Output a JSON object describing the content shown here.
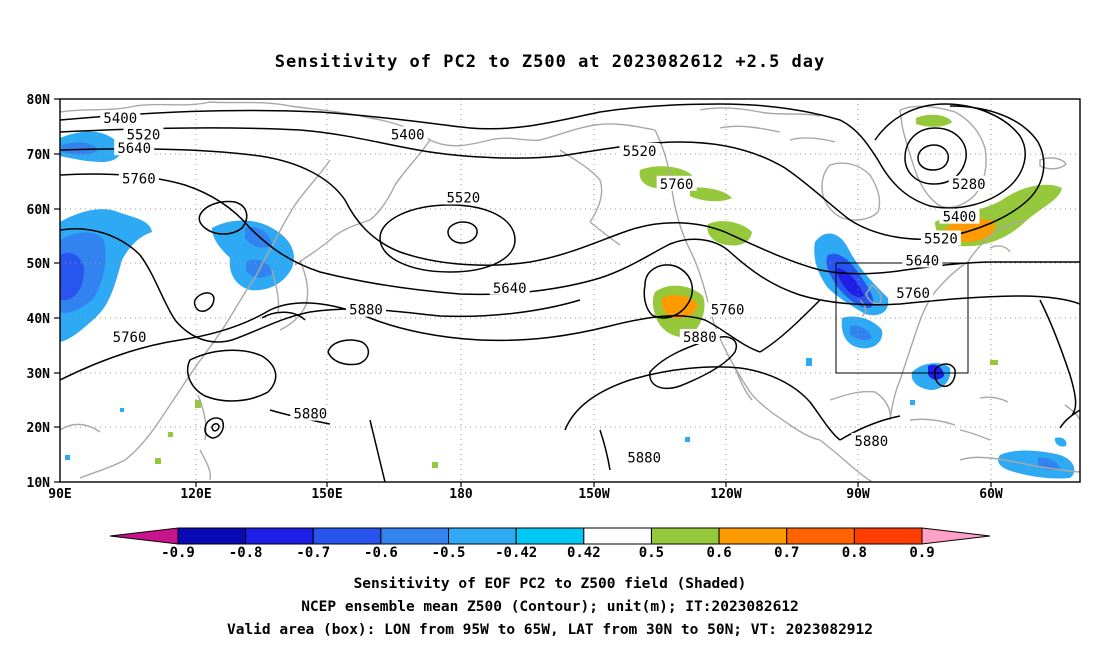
{
  "title": "Sensitivity of PC2 to Z500 at 2023082612 +2.5 day",
  "map": {
    "lat_labels": [
      "80N",
      "70N",
      "60N",
      "50N",
      "40N",
      "30N",
      "20N",
      "10N"
    ],
    "lon_labels": [
      "90E",
      "120E",
      "150E",
      "180",
      "150W",
      "120W",
      "90W",
      "60W"
    ],
    "lon_range": [
      "90E",
      "50W"
    ],
    "lat_range": [
      "10N",
      "80N"
    ],
    "valid_box": {
      "lon": [
        "95W",
        "65W"
      ],
      "lat": [
        "30N",
        "50N"
      ]
    },
    "contour_labels": [
      {
        "text": "5400",
        "lon": 103,
        "lat": 76.5
      },
      {
        "text": "5520",
        "lon": 108,
        "lat": 73.5
      },
      {
        "text": "5400",
        "lon": 165,
        "lat": 73.5
      },
      {
        "text": "5640",
        "lon": 106,
        "lat": 71
      },
      {
        "text": "5520",
        "lon": -145,
        "lat": 70.5
      },
      {
        "text": "5760",
        "lon": 107,
        "lat": 65.5
      },
      {
        "text": "5760",
        "lon": -137,
        "lat": 64.5
      },
      {
        "text": "5520",
        "lon": 177,
        "lat": 62
      },
      {
        "text": "5280",
        "lon": -74,
        "lat": 64.5
      },
      {
        "text": "5400",
        "lon": -76,
        "lat": 58.5
      },
      {
        "text": "5520",
        "lon": -80,
        "lat": 54.5
      },
      {
        "text": "5640",
        "lon": 187,
        "lat": 45.5
      },
      {
        "text": "5640",
        "lon": -84,
        "lat": 50.5
      },
      {
        "text": "5760",
        "lon": -86,
        "lat": 44.5
      },
      {
        "text": "5880",
        "lon": 156,
        "lat": 41.5
      },
      {
        "text": "5760",
        "lon": 105,
        "lat": 36.5
      },
      {
        "text": "5760",
        "lon": -126,
        "lat": 41.5
      },
      {
        "text": "5880",
        "lon": -132,
        "lat": 36.5
      },
      {
        "text": "5880",
        "lon": 144,
        "lat": 22.5
      },
      {
        "text": "5880",
        "lon": -95,
        "lat": 17.5
      },
      {
        "text": "5880",
        "lon": -144,
        "lat": 14.5
      }
    ]
  },
  "colorbar": {
    "labels": [
      "-0.9",
      "-0.8",
      "-0.7",
      "-0.6",
      "-0.5",
      "-0.42",
      "0.42",
      "0.5",
      "0.6",
      "0.7",
      "0.8",
      "0.9"
    ],
    "colors": [
      "#0a0ab4",
      "#1e1ee6",
      "#2855f0",
      "#3282f0",
      "#2eaaf5",
      "#00c8f5",
      "#ffffff",
      "#96c83c",
      "#ff9b00",
      "#ff6400",
      "#ff3c00",
      "#ff0000"
    ],
    "under_color": "#c8148c",
    "over_color": "#ffa0c8"
  },
  "caption": {
    "line1": "Sensitivity of EOF PC2 to Z500 field (Shaded)",
    "line2": "NCEP ensemble mean Z500 (Contour); unit(m); IT:2023082612",
    "line3": "Valid area (box): LON from 95W to 65W, LAT from 30N to 50N; VT: 2023082912"
  }
}
